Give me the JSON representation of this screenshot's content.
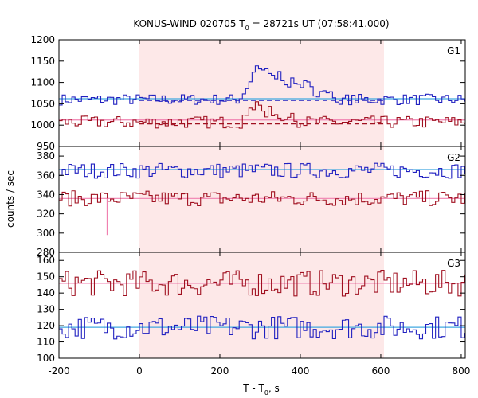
{
  "chart_data": {
    "type": "line",
    "title_main": "KONUS-WIND 020705 T",
    "title_sub": "0",
    "title_rest": " = 28721s UT (07:58:41.000)",
    "ylabel": "counts / sec",
    "xlabel_main": "T - T",
    "xlabel_sub": "0",
    "xlabel_rest": ", s",
    "xlim": [
      -200,
      810
    ],
    "xticks": [
      -200,
      0,
      200,
      400,
      600,
      800
    ],
    "xtick_labels": [
      "-200",
      "0",
      "200",
      "400",
      "600",
      "800"
    ],
    "highlight_interval": [
      0,
      608
    ],
    "colors": {
      "highlight": "#fde8e8",
      "blue_line": "#2020c0",
      "blue_fit": "#40a8e0",
      "red_line": "#a01020",
      "red_fit": "#f080b0"
    },
    "panels": [
      {
        "label": "G1",
        "ylim": [
          950,
          1200
        ],
        "yticks": [
          950,
          1000,
          1050,
          1100,
          1150,
          1200
        ],
        "ytick_labels": [
          "950",
          "1000",
          "1050",
          "1100",
          "1150",
          "1200"
        ],
        "series": [
          {
            "color_key": "blue",
            "baseline": 1060,
            "amp": 8,
            "fit": 1062,
            "dashed_level": 1058,
            "pulse": {
              "start": 245,
              "peak": 290,
              "end": 500,
              "height": 70
            }
          },
          {
            "color_key": "red",
            "baseline": 1007,
            "amp": 9,
            "fit": 1012,
            "dashed_level": 1003,
            "pulse": {
              "start": 250,
              "peak": 270,
              "end": 400,
              "height": 40
            }
          }
        ]
      },
      {
        "label": "G2",
        "ylim": [
          280,
          390
        ],
        "yticks": [
          280,
          300,
          320,
          340,
          360,
          380
        ],
        "ytick_labels": [
          "280",
          "300",
          "320",
          "340",
          "360",
          "380"
        ],
        "series": [
          {
            "color_key": "blue",
            "baseline": 365,
            "amp": 5,
            "fit": 366
          },
          {
            "color_key": "red",
            "baseline": 336,
            "amp": 5,
            "fit": 336,
            "dip": {
              "x": -80,
              "value": 298
            }
          }
        ]
      },
      {
        "label": "G3",
        "ylim": [
          100,
          165
        ],
        "yticks": [
          100,
          110,
          120,
          130,
          140,
          150,
          160
        ],
        "ytick_labels": [
          "100",
          "110",
          "120",
          "130",
          "140",
          "150",
          "160"
        ],
        "series": [
          {
            "color_key": "red",
            "baseline": 146,
            "amp": 5,
            "fit": 146
          },
          {
            "color_key": "blue",
            "baseline": 119,
            "amp": 4.5,
            "fit": 119
          }
        ]
      }
    ]
  }
}
